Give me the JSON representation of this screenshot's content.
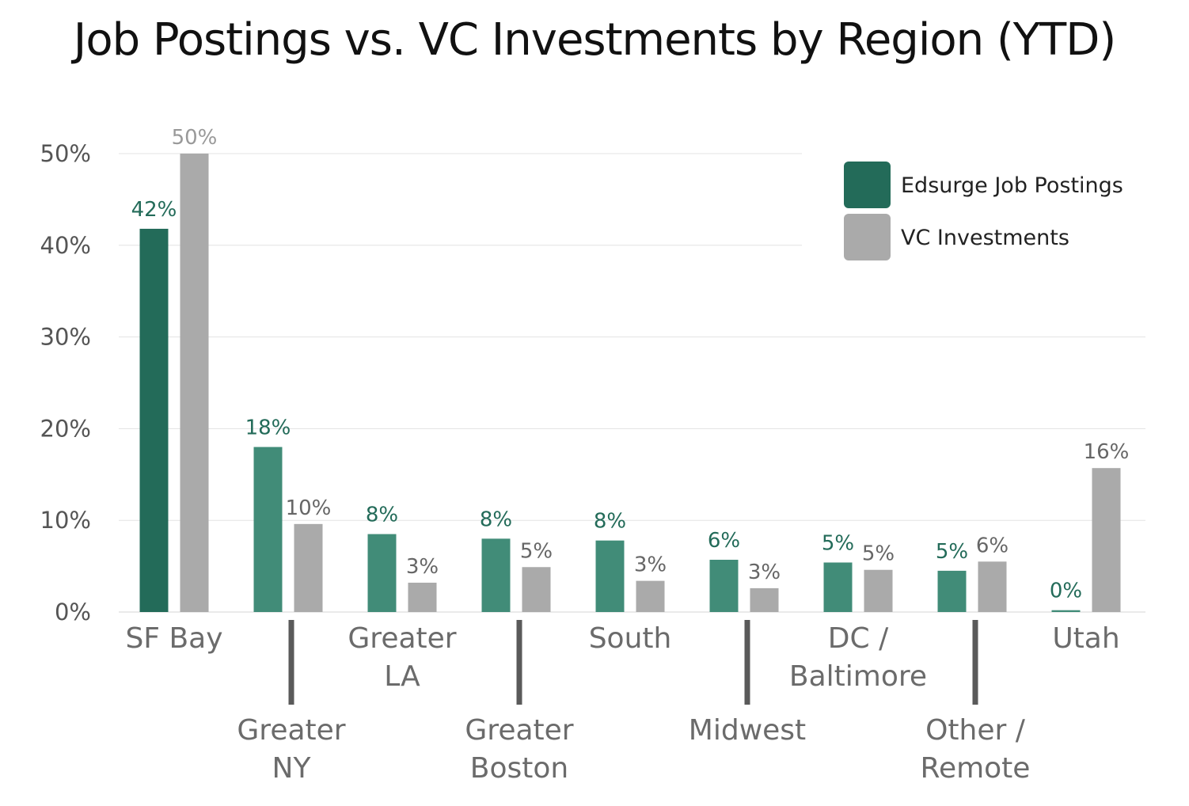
{
  "chart_data": {
    "type": "bar",
    "title": "Job Postings vs. VC Investments by Region (YTD)",
    "categories": [
      [
        "SF Bay"
      ],
      [
        "Greater",
        "NY"
      ],
      [
        "Greater",
        "LA"
      ],
      [
        "Greater",
        "Boston"
      ],
      [
        "South"
      ],
      [
        "Midwest"
      ],
      [
        "DC /",
        "Baltimore"
      ],
      [
        "Other /",
        "Remote"
      ],
      [
        "Utah"
      ]
    ],
    "series": [
      {
        "name": "Edsurge Job Postings",
        "values": [
          41.8,
          18.0,
          8.5,
          8.0,
          7.8,
          5.7,
          5.4,
          4.5,
          0.2
        ],
        "labels": [
          "42%",
          "18%",
          "8%",
          "8%",
          "8%",
          "6%",
          "5%",
          "5%",
          "0%"
        ]
      },
      {
        "name": "VC Investments",
        "values": [
          50.0,
          9.6,
          3.2,
          4.9,
          3.4,
          2.6,
          4.6,
          5.5,
          15.7
        ],
        "labels": [
          "50%",
          "10%",
          "3%",
          "5%",
          "3%",
          "3%",
          "5%",
          "6%",
          "16%"
        ]
      }
    ],
    "yticks": [
      "0%",
      "10%",
      "20%",
      "30%",
      "40%",
      "50%"
    ],
    "ylim": [
      0,
      50
    ],
    "grid": true,
    "legend": "top-right",
    "colors": {
      "job_first": "#236b59",
      "job": "#418c78",
      "vc": "#aaaaaa",
      "vc_label": "#999999",
      "vc_label_dark": "#666666"
    }
  }
}
